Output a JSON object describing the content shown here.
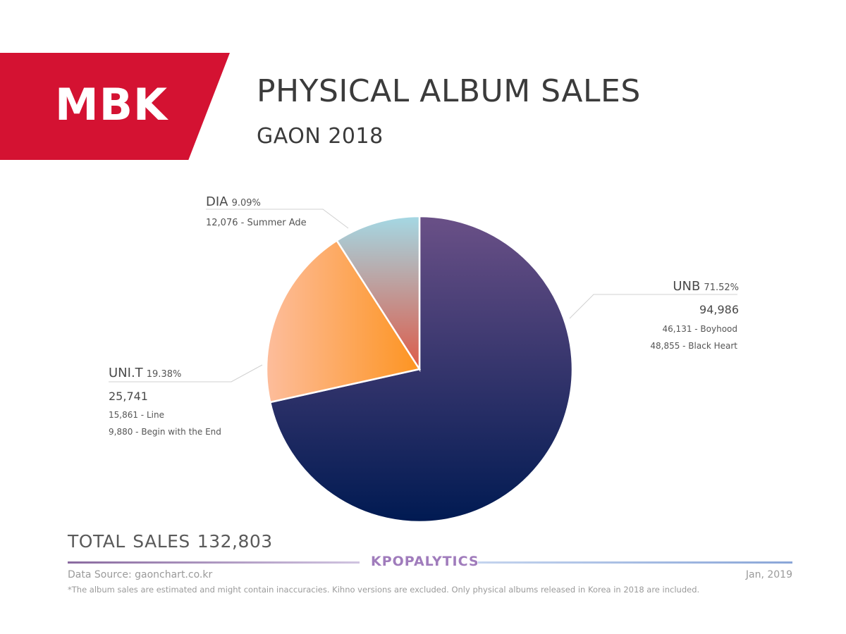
{
  "brand": {
    "label": "MBK",
    "color": "#d41232"
  },
  "header": {
    "title": "PHYSICAL ALBUM SALES",
    "subtitle": "GAON 2018"
  },
  "chart_data": {
    "type": "pie",
    "title": "PHYSICAL ALBUM SALES",
    "subtitle": "GAON 2018",
    "slices": [
      {
        "name": "UNB",
        "percent": "71.52%",
        "value": 71.52,
        "total": "94,986",
        "albums": [
          "46,131 - Boyhood",
          "48,855 - Black Heart"
        ],
        "colors": [
          "#6a5087",
          "#001a52"
        ]
      },
      {
        "name": "UNI.T",
        "percent": "19.38%",
        "value": 19.38,
        "total": "25,741",
        "albums": [
          "15,861 - Line",
          "9,880 - Begin with the End"
        ],
        "colors": [
          "#fdbd9c",
          "#fd9421"
        ]
      },
      {
        "name": "DIA",
        "percent": "9.09%",
        "value": 9.09,
        "total": "",
        "albums": [
          "12,076 - Summer Ade"
        ],
        "colors": [
          "#a4d8e4",
          "#dd5a48"
        ]
      }
    ]
  },
  "totals": {
    "label": "TOTAL SALES",
    "value": "132,803"
  },
  "footer": {
    "brand": "KPOPALYTICS",
    "source": "Data Source: gaonchart.co.kr",
    "date": "Jan, 2019",
    "note": "*The album sales are estimated and might contain inaccuracies. Kihno versions are excluded. Only physical albums released in Korea in 2018 are included."
  }
}
